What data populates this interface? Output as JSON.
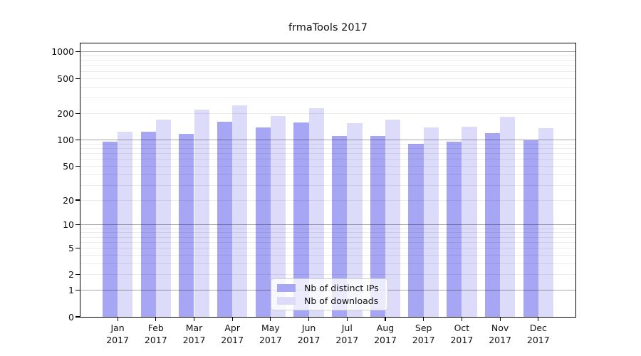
{
  "title": "frmaTools 2017",
  "colors": {
    "distinct_ips": "#a6a6f5",
    "downloads": "#dcdcfa",
    "major_grid": "rgba(0,0,0,0.35)",
    "minor_grid": "rgba(0,0,0,0.08)",
    "axis": "#000000"
  },
  "x_axis": {
    "months": [
      "Jan",
      "Feb",
      "Mar",
      "Apr",
      "May",
      "Jun",
      "Jul",
      "Aug",
      "Sep",
      "Oct",
      "Nov",
      "Dec"
    ],
    "year": "2017"
  },
  "chart_data": {
    "type": "bar",
    "title": "frmaTools 2017",
    "categories": [
      "Jan 2017",
      "Feb 2017",
      "Mar 2017",
      "Apr 2017",
      "May 2017",
      "Jun 2017",
      "Jul 2017",
      "Aug 2017",
      "Sep 2017",
      "Oct 2017",
      "Nov 2017",
      "Dec 2017"
    ],
    "series": [
      {
        "name": "Nb of distinct IPs",
        "color": "#a6a6f5",
        "values": [
          95,
          123,
          118,
          162,
          138,
          159,
          110,
          110,
          90,
          95,
          119,
          100
        ]
      },
      {
        "name": "Nb of downloads",
        "color": "#dcdcfa",
        "values": [
          124,
          172,
          220,
          246,
          186,
          228,
          155,
          172,
          139,
          142,
          183,
          137
        ]
      }
    ],
    "xlabel": "",
    "ylabel": "",
    "yscale": "log1p",
    "y_ticks": [
      0,
      1,
      2,
      5,
      10,
      20,
      50,
      100,
      200,
      500,
      1000
    ],
    "ylim": [
      0,
      1250
    ],
    "grid": true,
    "grid_over_bars": true,
    "legend_position": "bottom-center"
  }
}
